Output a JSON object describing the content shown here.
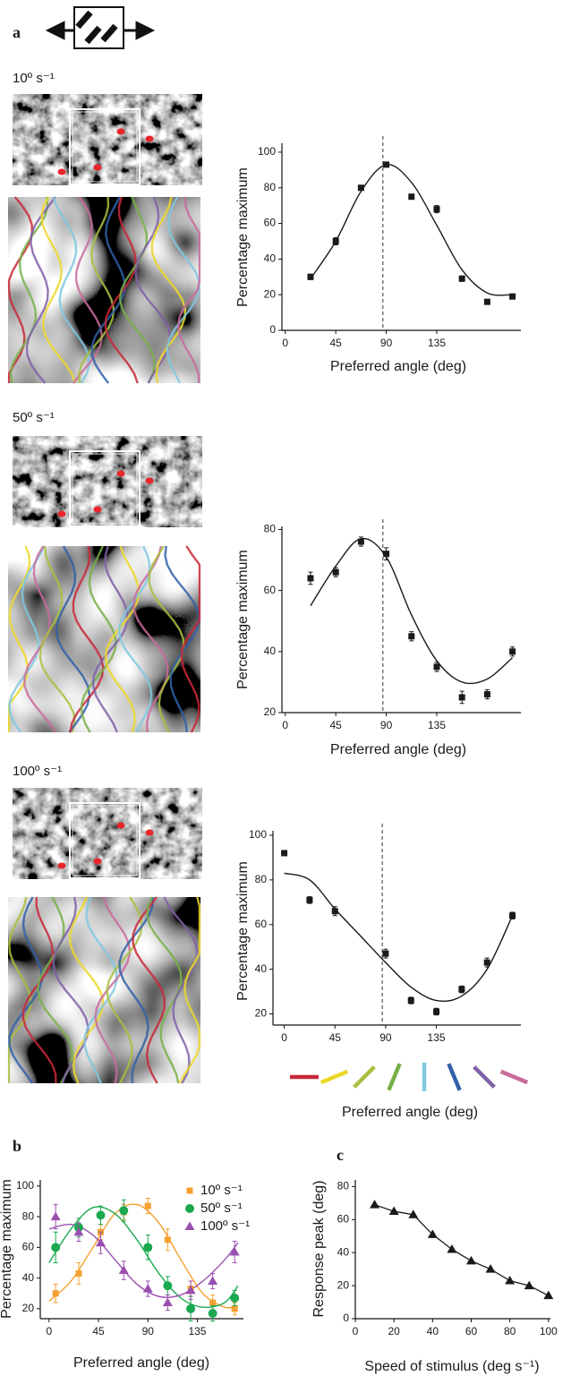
{
  "panel_labels": [
    "a",
    "b",
    "c"
  ],
  "chart_data": [
    {
      "type": "scatter",
      "title": "10º s⁻¹",
      "x_label": "Preferred angle (deg)",
      "y_label": "Percentage maximum",
      "x": [
        22.5,
        45,
        67.5,
        90,
        112.5,
        135,
        157.5,
        180,
        202.5
      ],
      "series": [
        {
          "marker": "square",
          "color": "#1a1a1a",
          "values": [
            30,
            50,
            80,
            93,
            75,
            68,
            29,
            16,
            19
          ],
          "errors": [
            1.5,
            2,
            1,
            1,
            1,
            2,
            1.5,
            1,
            1
          ]
        },
        {
          "kind": "fit",
          "color": "#1a1a1a",
          "x": [
            22.5,
            45,
            67.5,
            90,
            112.5,
            135,
            157.5,
            180,
            202.5
          ],
          "values": [
            29,
            50,
            78,
            93,
            83,
            59,
            34,
            21,
            20
          ]
        }
      ],
      "reference_line": 87,
      "xlim": [
        -3,
        210
      ],
      "ylim": [
        0,
        105
      ],
      "xticks": [
        0,
        45,
        90,
        135
      ],
      "yticks": [
        0,
        20,
        40,
        60,
        80,
        100
      ]
    },
    {
      "type": "scatter",
      "title": "50º s⁻¹",
      "x_label": "Preferred angle (deg)",
      "y_label": "Percentage maximum",
      "x": [
        22.5,
        45,
        67.5,
        90,
        112.5,
        135,
        157.5,
        180,
        202.5
      ],
      "series": [
        {
          "marker": "square",
          "color": "#1a1a1a",
          "values": [
            64,
            66,
            76,
            72,
            45,
            35,
            25,
            26,
            40
          ],
          "errors": [
            2,
            1.5,
            1.5,
            2,
            1.5,
            1.5,
            2,
            1.5,
            1.5
          ]
        },
        {
          "kind": "fit",
          "color": "#1a1a1a",
          "x": [
            22.5,
            45,
            67.5,
            90,
            112.5,
            135,
            157.5,
            180,
            202.5
          ],
          "values": [
            55,
            68,
            77,
            71,
            52,
            37,
            30,
            31,
            38
          ]
        }
      ],
      "reference_line": 87,
      "xlim": [
        -3,
        210
      ],
      "ylim": [
        20,
        81
      ],
      "xticks": [
        0,
        45,
        90,
        135
      ],
      "yticks": [
        20,
        40,
        60,
        80
      ]
    },
    {
      "type": "scatter",
      "title": "100º s⁻¹",
      "x_label": "Preferred angle (deg)",
      "y_label": "Percentage maximum",
      "x": [
        0,
        22.5,
        45,
        90,
        112.5,
        135,
        157.5,
        180,
        202.5
      ],
      "series": [
        {
          "marker": "square",
          "color": "#1a1a1a",
          "values": [
            92,
            71,
            66,
            47,
            26,
            21,
            31,
            43,
            64
          ],
          "errors": [
            1,
            1.5,
            2,
            2,
            1.5,
            1.5,
            1.5,
            2,
            1.5
          ]
        },
        {
          "kind": "fit",
          "color": "#1a1a1a",
          "x": [
            0,
            22.5,
            45,
            67.5,
            90,
            112.5,
            135,
            157.5,
            180,
            202.5
          ],
          "values": [
            83,
            80,
            67,
            55,
            43,
            32,
            26,
            28,
            40,
            64
          ]
        }
      ],
      "reference_line": 87,
      "xlim": [
        -10,
        210
      ],
      "ylim": [
        15,
        102
      ],
      "xticks": [
        0,
        45,
        90,
        135
      ],
      "yticks": [
        20,
        40,
        60,
        80,
        100
      ]
    },
    {
      "type": "scatter",
      "x_label": "Preferred angle (deg)",
      "y_label": "Percentage maximum",
      "x": [
        6,
        27,
        47,
        68,
        90,
        108,
        129,
        149,
        169
      ],
      "series": [
        {
          "name": "10º s⁻¹",
          "marker": "square",
          "color": "#f5a030",
          "values": [
            30,
            43,
            70,
            83,
            87,
            65,
            33,
            24,
            20
          ],
          "errors": [
            6,
            7,
            5,
            5,
            5,
            7,
            5,
            5,
            4
          ]
        },
        {
          "name": "50º s⁻¹",
          "marker": "circle",
          "color": "#1aa850",
          "values": [
            60,
            73,
            81,
            84,
            60,
            35,
            20,
            17,
            27
          ],
          "errors": [
            10,
            6,
            6,
            7,
            8,
            6,
            8,
            5,
            5
          ]
        },
        {
          "name": "100º s⁻¹",
          "marker": "triangle",
          "color": "#9a4fb0",
          "values": [
            80,
            70,
            63,
            45,
            33,
            24,
            32,
            38,
            57
          ],
          "errors": [
            8,
            6,
            7,
            6,
            5,
            5,
            6,
            5,
            7
          ]
        },
        {
          "kind": "fit",
          "color": "#f5a030",
          "x": [
            0,
            20,
            40,
            60,
            80,
            100,
            120,
            140,
            160,
            172
          ],
          "values": [
            25,
            38,
            60,
            82,
            88,
            76,
            52,
            30,
            21,
            22
          ]
        },
        {
          "kind": "fit",
          "color": "#1aa850",
          "x": [
            0,
            20,
            40,
            60,
            80,
            100,
            120,
            140,
            160,
            172
          ],
          "values": [
            50,
            72,
            86,
            82,
            65,
            43,
            27,
            21,
            24,
            35
          ]
        },
        {
          "kind": "fit",
          "color": "#9a4fb0",
          "x": [
            0,
            20,
            40,
            60,
            80,
            100,
            120,
            140,
            160,
            172
          ],
          "values": [
            72,
            75,
            68,
            52,
            36,
            28,
            29,
            38,
            52,
            63
          ]
        }
      ],
      "legend": "upper right",
      "xlim": [
        -8,
        177
      ],
      "ylim": [
        13.5,
        104
      ],
      "xticks": [
        0,
        45,
        90,
        135
      ],
      "yticks": [
        20,
        40,
        60,
        80,
        100
      ]
    },
    {
      "type": "line",
      "x_label": "Speed of stimulus (deg s⁻¹)",
      "y_label": "Response peak (deg)",
      "x": [
        10,
        20,
        30,
        40,
        50,
        60,
        70,
        80,
        90,
        100
      ],
      "series": [
        {
          "marker": "triangle",
          "color": "#1a1a1a",
          "values": [
            69,
            65,
            63,
            51,
            42,
            35,
            30,
            23,
            20,
            14
          ]
        }
      ],
      "xlim": [
        0,
        101
      ],
      "ylim": [
        0,
        84
      ],
      "xticks": [
        0,
        20,
        40,
        60,
        80,
        100
      ],
      "yticks": [
        0,
        20,
        40,
        60,
        80
      ]
    }
  ]
}
